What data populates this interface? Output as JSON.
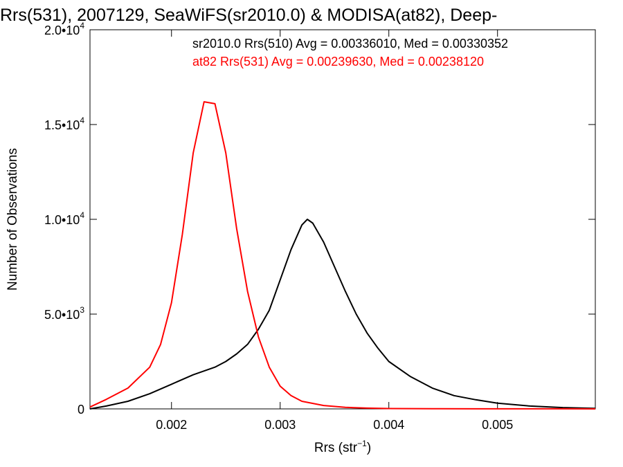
{
  "chart_data": {
    "type": "line",
    "title": "Rrs(531), 2007129, SeaWiFS(sr2010.0) & MODISA(at82), Deep-",
    "xlabel": "Rrs (str",
    "xlabel_exp": "−1",
    "xlabel_close": ")",
    "ylabel": "Number of Observations",
    "xlim": [
      0.00125,
      0.0059
    ],
    "ylim": [
      0,
      20000
    ],
    "xticks": [
      {
        "value": 0.002,
        "label": "0.002"
      },
      {
        "value": 0.003,
        "label": "0.003"
      },
      {
        "value": 0.004,
        "label": "0.004"
      },
      {
        "value": 0.005,
        "label": "0.005"
      }
    ],
    "yticks": [
      {
        "value": 0,
        "label": "0",
        "exp": ""
      },
      {
        "value": 5000,
        "label": "5.0•10",
        "exp": "3"
      },
      {
        "value": 10000,
        "label": "1.0•10",
        "exp": "4"
      },
      {
        "value": 15000,
        "label": "1.5•10",
        "exp": "4"
      },
      {
        "value": 20000,
        "label": "2.0•10",
        "exp": "4"
      }
    ],
    "grid": false,
    "legend_position": "top-right",
    "series": [
      {
        "name": "sr2010.0 Rrs(510) Avg = 0.00336010, Med = 0.00330352",
        "color": "#000000",
        "x": [
          0.00125,
          0.0014,
          0.0016,
          0.0018,
          0.002,
          0.0022,
          0.0024,
          0.0025,
          0.0026,
          0.0027,
          0.0028,
          0.0029,
          0.003,
          0.0031,
          0.0032,
          0.00325,
          0.0033,
          0.0034,
          0.0035,
          0.0036,
          0.0037,
          0.0038,
          0.0039,
          0.004,
          0.0042,
          0.0044,
          0.0046,
          0.0048,
          0.005,
          0.0053,
          0.0056,
          0.0059
        ],
        "y": [
          0,
          150,
          400,
          800,
          1300,
          1800,
          2200,
          2500,
          2900,
          3400,
          4200,
          5200,
          6800,
          8400,
          9700,
          10000,
          9800,
          8800,
          7500,
          6200,
          5000,
          4000,
          3200,
          2500,
          1700,
          1100,
          700,
          480,
          300,
          150,
          70,
          30
        ]
      },
      {
        "name": "at82 Rrs(531) Avg = 0.00239630, Med = 0.00238120",
        "color": "#ff0000",
        "x": [
          0.00125,
          0.0014,
          0.0016,
          0.0018,
          0.0019,
          0.002,
          0.0021,
          0.0022,
          0.0023,
          0.0024,
          0.0025,
          0.0026,
          0.0027,
          0.0028,
          0.0029,
          0.003,
          0.0031,
          0.0032,
          0.0034,
          0.0036,
          0.0038,
          0.004,
          0.0044,
          0.0048,
          0.0052,
          0.0056,
          0.0059
        ],
        "y": [
          100,
          500,
          1100,
          2200,
          3400,
          5600,
          9200,
          13500,
          16200,
          16100,
          13500,
          9500,
          6200,
          3800,
          2200,
          1200,
          700,
          400,
          180,
          80,
          40,
          20,
          10,
          5,
          3,
          2,
          1
        ]
      }
    ]
  }
}
